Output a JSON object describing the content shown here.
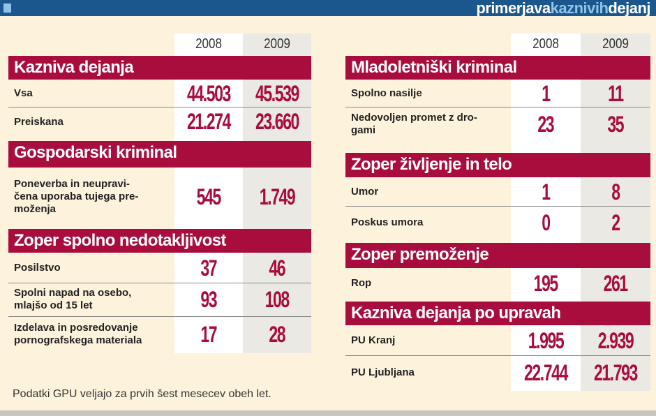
{
  "header": {
    "title_part1": "primerjava",
    "title_part2": "kaznivih",
    "title_part3": "dejanj"
  },
  "colors": {
    "header_bg": "#1b578c",
    "accent": "#a80d3d",
    "background": "#fdf3dc"
  },
  "years": [
    "2008",
    "2009"
  ],
  "footnote": "Podatki GPU veljajo za prvih šest mesecev obeh let.",
  "chart_data": {
    "type": "table",
    "columns": [
      "2008",
      "2009"
    ],
    "tables": [
      {
        "sections": [
          {
            "title": "Kazniva dejanja",
            "rows": [
              {
                "label": "Vsa",
                "v2008": "44.503",
                "v2009": "45.539"
              },
              {
                "label": "Preiskana",
                "v2008": "21.274",
                "v2009": "23.660"
              }
            ]
          },
          {
            "title": "Gospodarski kriminal",
            "rows": [
              {
                "label": "Poneverba in neupravi-\nčena uporaba tujega pre-\nmoženja",
                "v2008": "545",
                "v2009": "1.749"
              }
            ]
          },
          {
            "title": "Zoper spolno nedotakljivost",
            "rows": [
              {
                "label": "Posilstvo",
                "v2008": "37",
                "v2009": "46"
              },
              {
                "label": "Spolni napad na osebo,\nmlajšo od 15 let",
                "v2008": "93",
                "v2009": "108"
              },
              {
                "label": "Izdelava in posredovanje\npornografskega materiala",
                "v2008": "17",
                "v2009": "28"
              }
            ]
          }
        ]
      },
      {
        "sections": [
          {
            "title": "Mladoletniški kriminal",
            "rows": [
              {
                "label": "Spolno nasilje",
                "v2008": "1",
                "v2009": "11"
              },
              {
                "label": "Nedovoljen promet z dro-\ngami",
                "v2008": "23",
                "v2009": "35"
              }
            ]
          },
          {
            "title": "Zoper življenje in telo",
            "rows": [
              {
                "label": "Umor",
                "v2008": "1",
                "v2009": "8"
              },
              {
                "label": "Poskus umora",
                "v2008": "0",
                "v2009": "2"
              }
            ]
          },
          {
            "title": "Zoper premoženje",
            "rows": [
              {
                "label": "Rop",
                "v2008": "195",
                "v2009": "261"
              }
            ]
          },
          {
            "title": "Kazniva dejanja po upravah",
            "rows": [
              {
                "label": "PU Kranj",
                "v2008": "1.995",
                "v2009": "2.939"
              },
              {
                "label": "PU Ljubljana",
                "v2008": "22.744",
                "v2009": "21.793"
              }
            ]
          }
        ]
      }
    ]
  }
}
